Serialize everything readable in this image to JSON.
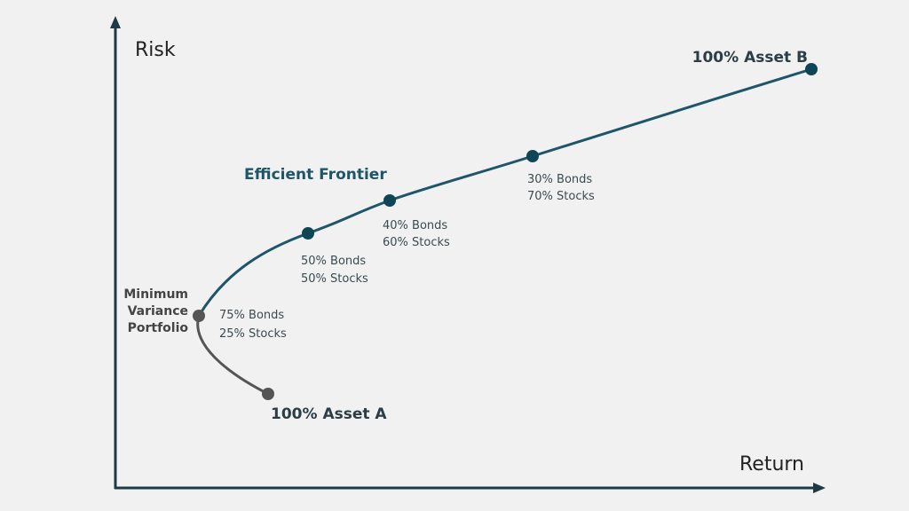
{
  "axes": {
    "y_label": "Risk",
    "x_label": "Return"
  },
  "curve_label": "Efficient Frontier",
  "points": [
    {
      "label": "100% Asset A"
    },
    {
      "label_lines": [
        "Minimum",
        "Variance",
        "Portfolio"
      ],
      "note_lines": [
        "75% Bonds",
        "25% Stocks"
      ]
    },
    {
      "note_lines": [
        "50% Bonds",
        "50% Stocks"
      ]
    },
    {
      "note_lines": [
        "40% Bonds",
        "60% Stocks"
      ]
    },
    {
      "note_lines": [
        "30% Bonds",
        "70% Stocks"
      ]
    },
    {
      "label": "100% Asset B"
    }
  ]
}
